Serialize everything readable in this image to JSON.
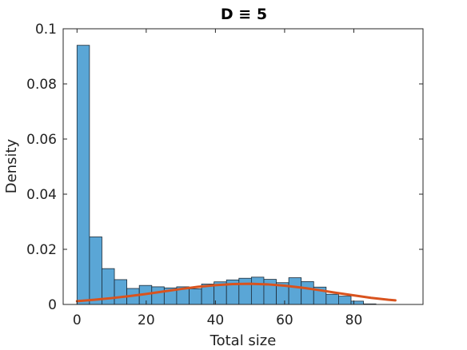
{
  "chart_data": {
    "type": "bar",
    "title": "D ≡ 5",
    "xlabel": "Total size",
    "ylabel": "Density",
    "xlim": [
      -4,
      100
    ],
    "ylim": [
      0,
      0.1
    ],
    "xticks": [
      0,
      20,
      40,
      60,
      80
    ],
    "yticks": [
      0,
      0.02,
      0.04,
      0.06,
      0.08,
      0.1
    ],
    "xtick_labels": [
      "0",
      "20",
      "40",
      "60",
      "80"
    ],
    "ytick_labels": [
      "0",
      "0.02",
      "0.04",
      "0.06",
      "0.08",
      "0.1"
    ],
    "grid": false,
    "bin_width": 3.6,
    "bin_start": 0,
    "histogram": [
      0.094,
      0.0245,
      0.013,
      0.009,
      0.0058,
      0.0069,
      0.0064,
      0.006,
      0.0064,
      0.0057,
      0.0074,
      0.0082,
      0.0089,
      0.0095,
      0.0099,
      0.0091,
      0.0079,
      0.0097,
      0.0083,
      0.0063,
      0.0037,
      0.003,
      0.0012,
      0.0002
    ],
    "fit_curve": {
      "x": [
        0,
        5,
        10,
        15,
        20,
        25,
        30,
        35,
        40,
        45,
        50,
        55,
        60,
        65,
        70,
        75,
        80,
        85,
        90,
        92
      ],
      "y": [
        0.0012,
        0.0017,
        0.0023,
        0.003,
        0.0038,
        0.0047,
        0.0056,
        0.0064,
        0.007,
        0.0074,
        0.0075,
        0.0073,
        0.0068,
        0.0061,
        0.0052,
        0.0042,
        0.0033,
        0.0024,
        0.0017,
        0.0015
      ]
    },
    "colors": {
      "bar_fill": "#5aa6d6",
      "bar_edge": "#1c2a36",
      "fit_line": "#d9531e",
      "axis": "#262626"
    }
  }
}
